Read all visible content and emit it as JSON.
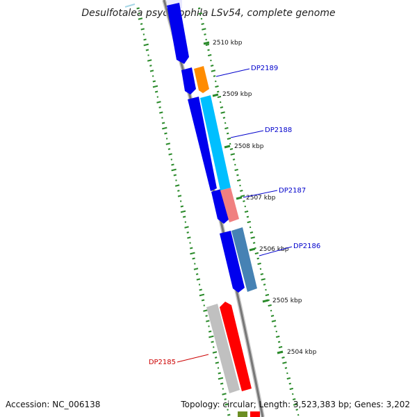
{
  "title": "Desulfotalea psychrophila LSv54, complete genome",
  "footer": {
    "accession": "Accession: NC_006138",
    "summary": "Topology: circular; Length: 3,523,383 bp; Genes: 3,202"
  },
  "ruler": [
    "2510 kbp",
    "2509 kbp",
    "2508 kbp",
    "2507 kbp",
    "2506 kbp",
    "2505 kbp",
    "2504 kbp"
  ],
  "genes": [
    {
      "name": "DP2189",
      "color": "#ff8c00"
    },
    {
      "name": "DP2188",
      "color": "#00bfff"
    },
    {
      "name": "DP2187",
      "color": "#f08080"
    },
    {
      "name": "DP2186",
      "color": "#4682b4"
    },
    {
      "name": "DP2185",
      "color": "#ff0000"
    }
  ],
  "colors": {
    "reverse_strand_gene": "#0000ff",
    "orf": "#c0c0c0",
    "backbone": "#808080",
    "gc_skew_ticks": "#2a8a2a",
    "label_blue": "#0000cc",
    "label_red": "#cc0000"
  }
}
